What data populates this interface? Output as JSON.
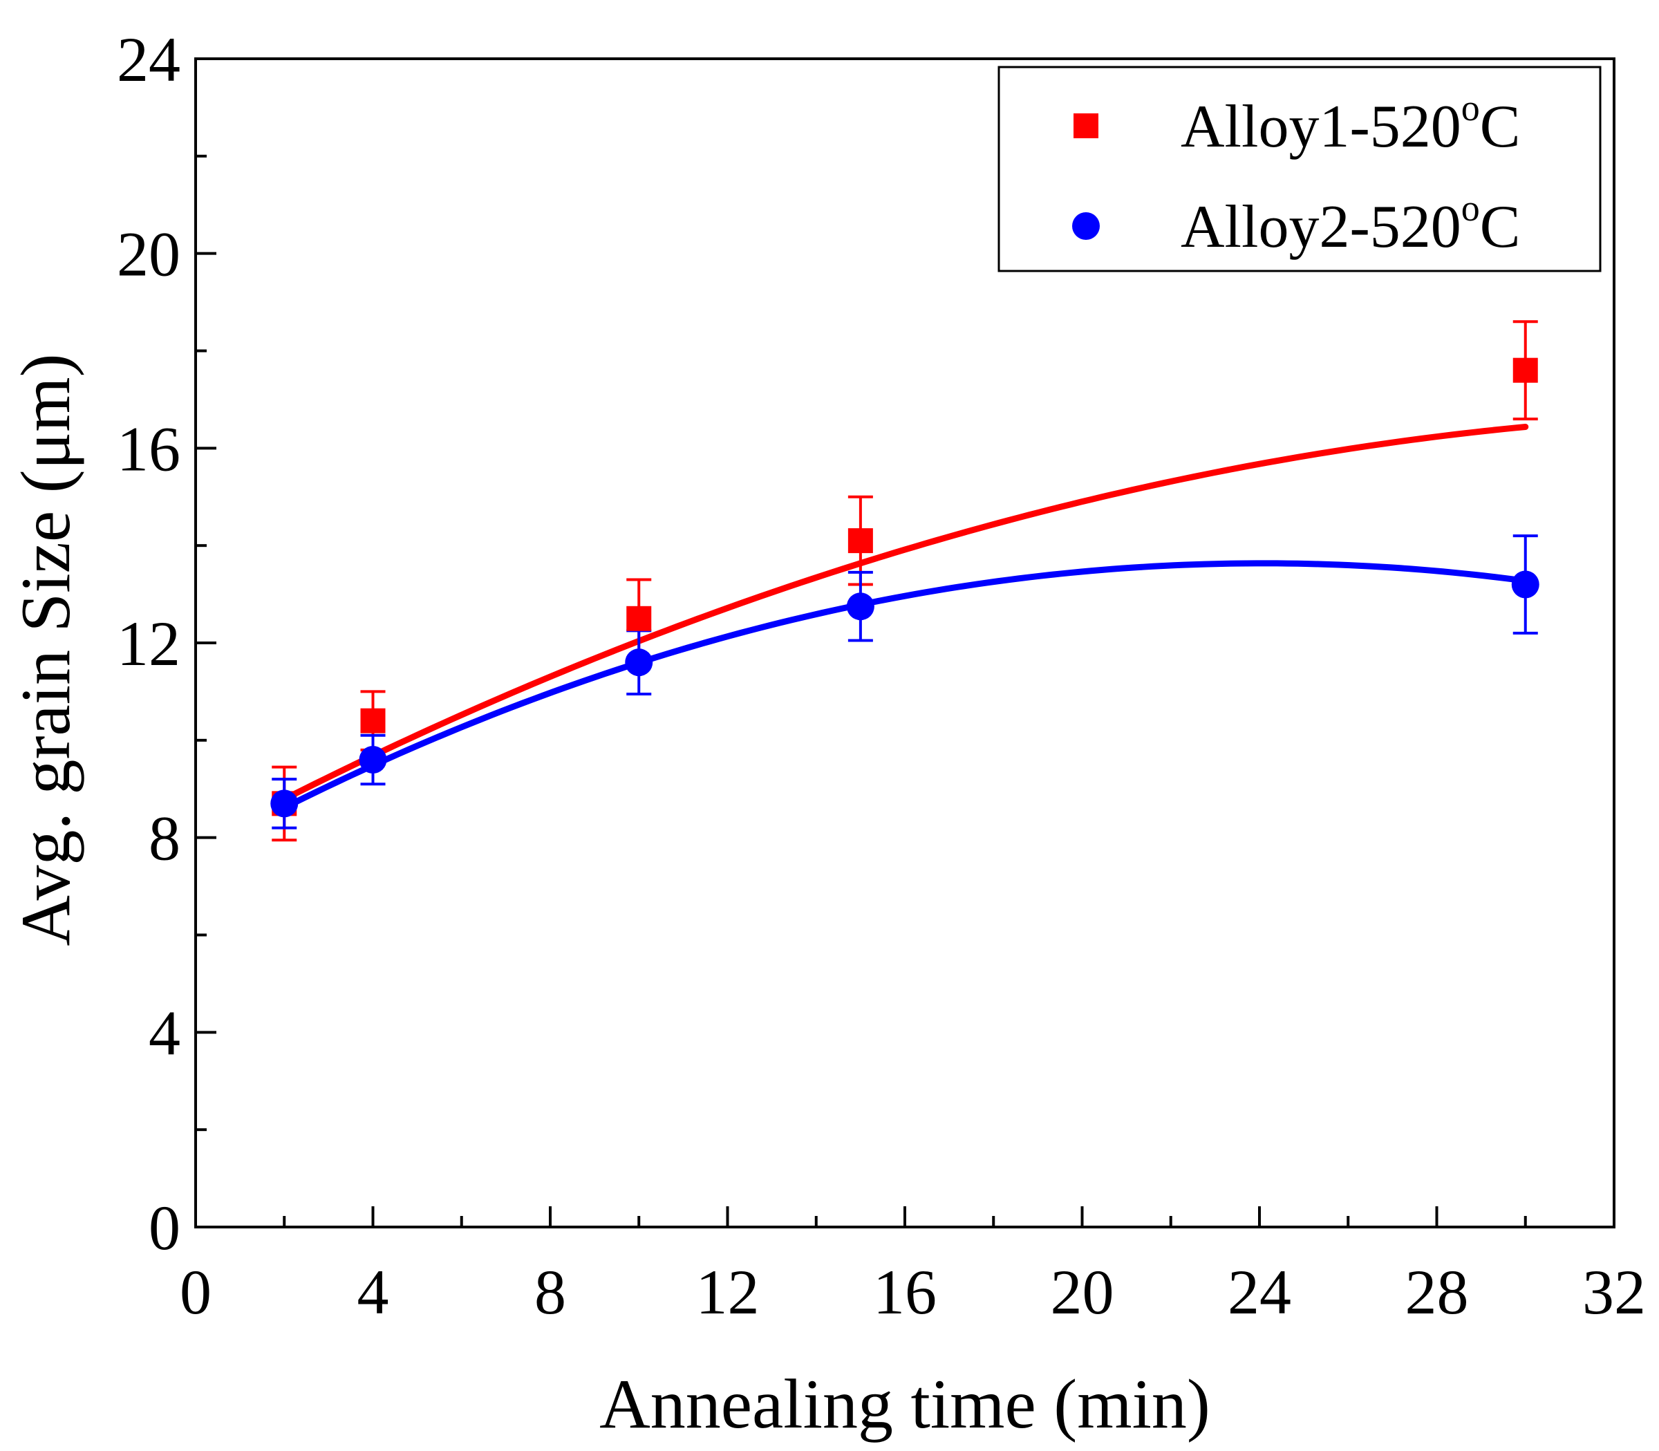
{
  "chart_data": {
    "type": "scatter",
    "title": "",
    "xlabel": "Annealing time (min)",
    "ylabel": "Avg. grain Size (μm)",
    "xlim": [
      0,
      32
    ],
    "ylim": [
      0,
      24
    ],
    "xticks": [
      0,
      4,
      8,
      12,
      16,
      20,
      24,
      28,
      32
    ],
    "yticks": [
      0,
      4,
      8,
      12,
      16,
      20,
      24
    ],
    "grid": false,
    "legend_position": "top-right",
    "series": [
      {
        "name": "Alloy1-520",
        "legend_sup": "o",
        "legend_suffix": "C",
        "marker": "square",
        "color": "#ff0000",
        "x": [
          2,
          4,
          10,
          15,
          30
        ],
        "y": [
          8.7,
          10.4,
          12.5,
          14.1,
          17.6
        ],
        "yerr": [
          0.75,
          0.6,
          0.8,
          0.9,
          1.0
        ],
        "fit": [
          7.846,
          0.4856,
          -0.00664
        ]
      },
      {
        "name": "Alloy2-520",
        "legend_sup": "o",
        "legend_suffix": "C",
        "marker": "circle",
        "color": "#0000ff",
        "x": [
          2,
          4,
          10,
          15,
          30
        ],
        "y": [
          8.7,
          9.6,
          11.6,
          12.75,
          13.2
        ],
        "yerr": [
          0.5,
          0.5,
          0.65,
          0.7,
          1.0
        ],
        "fit": [
          7.664,
          0.496,
          -0.0103
        ]
      }
    ]
  }
}
